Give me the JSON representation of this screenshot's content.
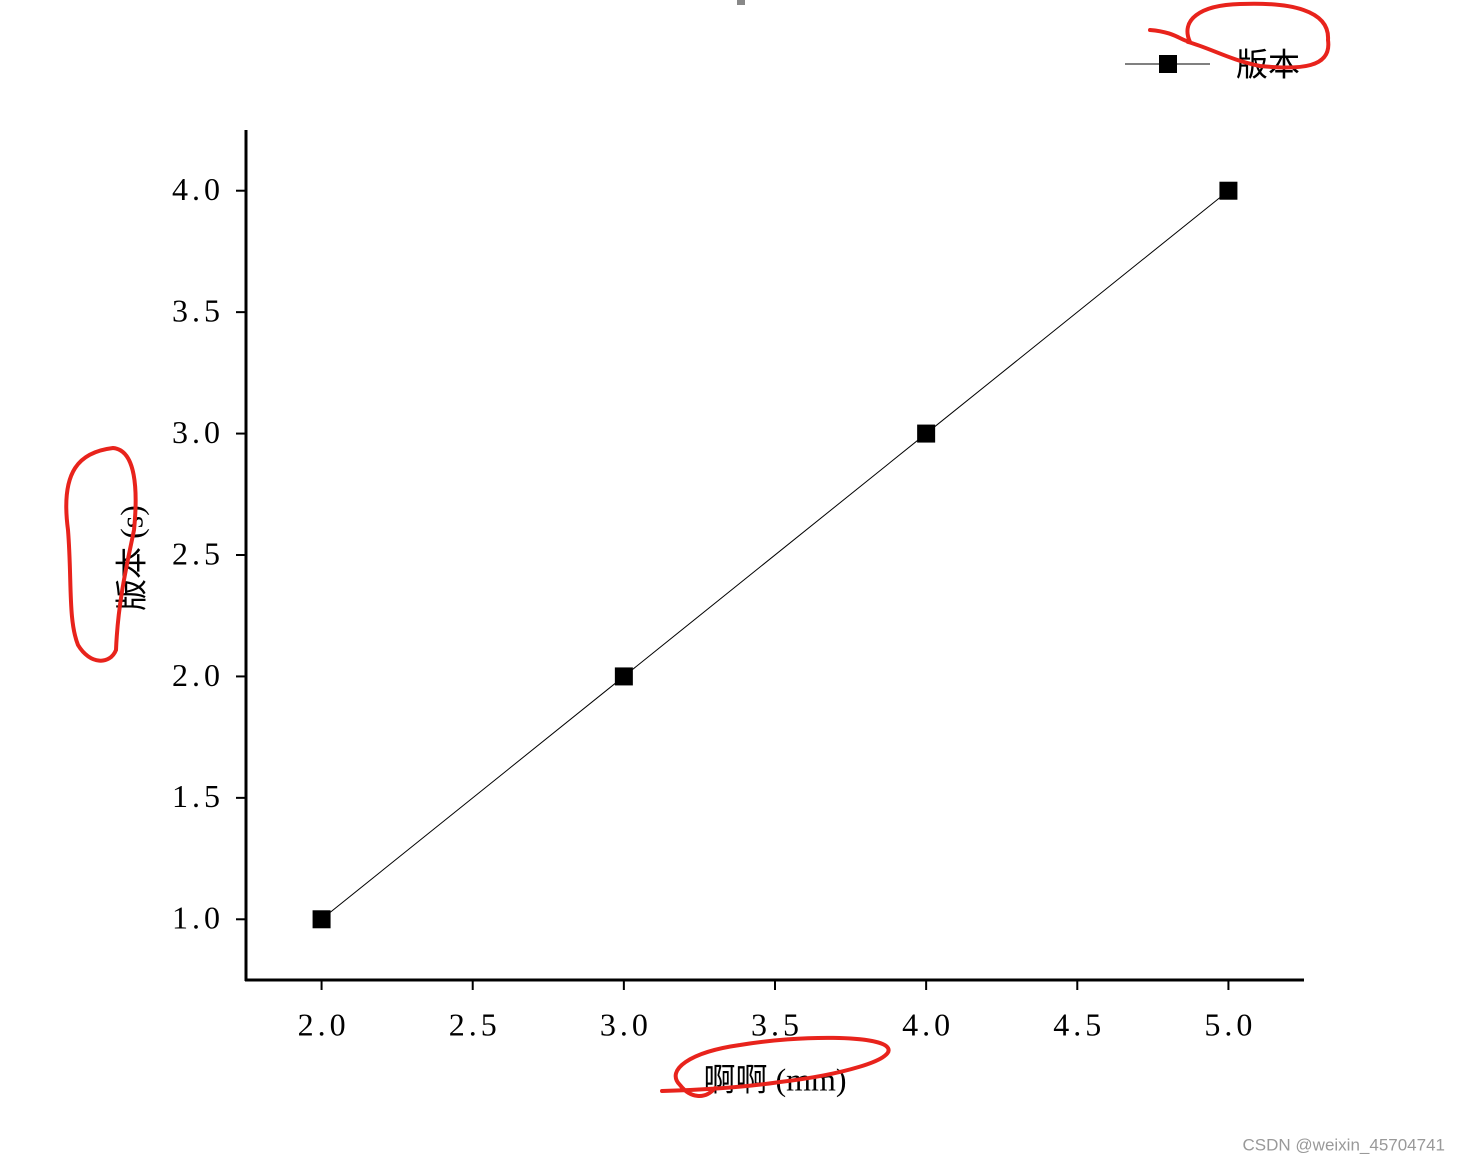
{
  "chart_data": {
    "type": "line",
    "x_label": "啊啊 (mm)",
    "y_label": "版本 (s)",
    "x": [
      2,
      3,
      4,
      5
    ],
    "series": [
      {
        "name": "版本",
        "color": "#000000",
        "values": [
          1,
          2,
          3,
          4
        ]
      }
    ],
    "xlim": [
      1.75,
      5.25
    ],
    "xticks": [
      {
        "value": 2,
        "label": "2.0"
      },
      {
        "value": 2.5,
        "label": "2.5"
      },
      {
        "value": 3,
        "label": "3.0"
      },
      {
        "value": 3.5,
        "label": "3.5"
      },
      {
        "value": 4,
        "label": "4.0"
      },
      {
        "value": 4.5,
        "label": "4.5"
      },
      {
        "value": 5,
        "label": "5.0"
      }
    ],
    "ylim": [
      0.75,
      4.25
    ],
    "yticks": [
      {
        "value": 1,
        "label": "1.0"
      },
      {
        "value": 1.5,
        "label": "1.5"
      },
      {
        "value": 2,
        "label": "2.0"
      },
      {
        "value": 2.5,
        "label": "2.5"
      },
      {
        "value": 3,
        "label": "3.0"
      },
      {
        "value": 3.5,
        "label": "3.5"
      },
      {
        "value": 4,
        "label": "4.0"
      }
    ],
    "grid": false,
    "legend": "top-right",
    "watermark": "CSDN @weixin_45704741"
  }
}
